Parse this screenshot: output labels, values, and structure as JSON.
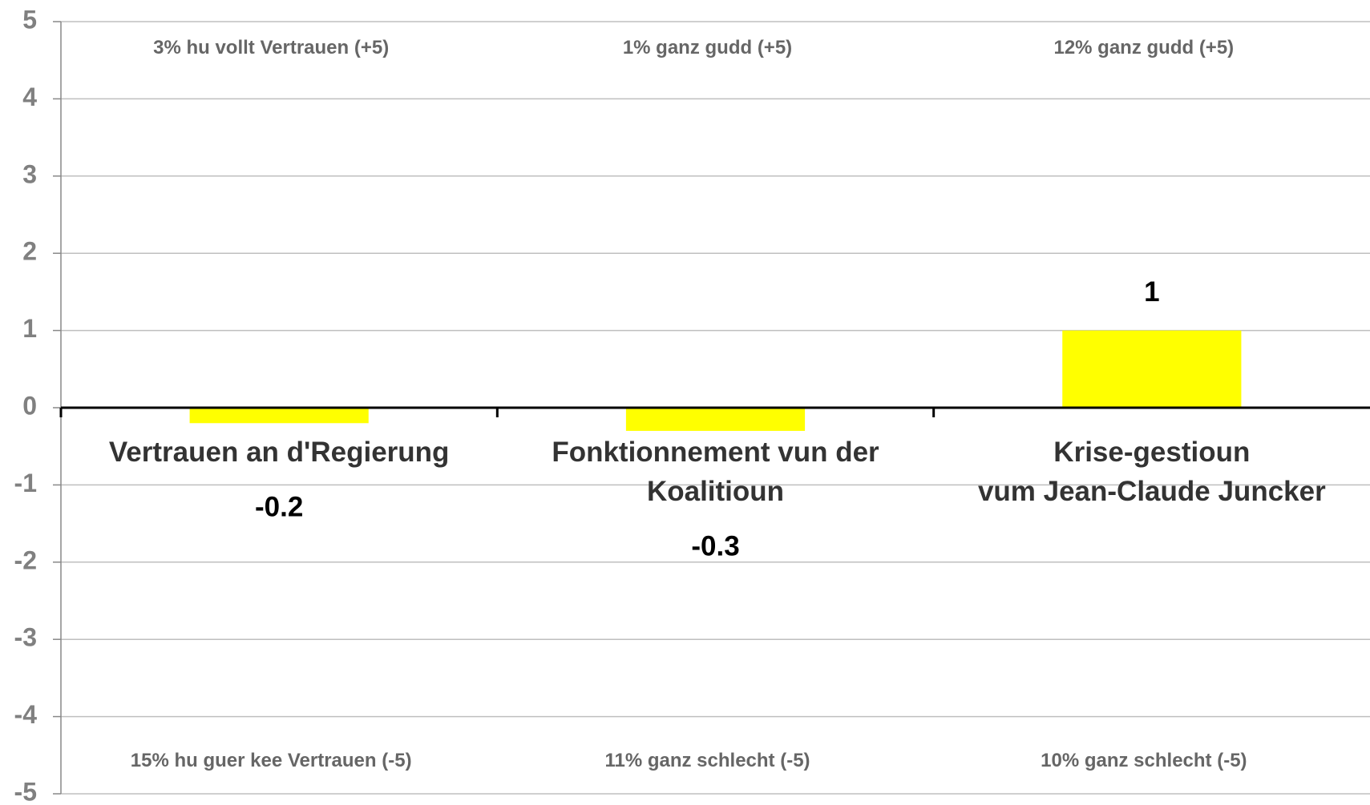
{
  "chart_data": {
    "type": "bar",
    "categories": [
      "Vertrauen an d'Regierung",
      "Fonktionnement vun der\nKoalitioun",
      "Krise-gestioun\nvum Jean-Claude Juncker"
    ],
    "values": [
      -0.2,
      -0.3,
      1
    ],
    "color": "#ffff00",
    "ylim": [
      -5,
      5
    ],
    "yticks": [
      -5,
      -4,
      -3,
      -2,
      -1,
      0,
      1,
      2,
      3,
      4,
      5
    ],
    "grid": true,
    "annotations_top": [
      "3% hu vollt Vertrauen (+5)",
      "1% ganz gudd (+5)",
      "12% ganz gudd (+5)"
    ],
    "annotations_bottom": [
      "15% hu guer kee Vertrauen (-5)",
      "11% ganz schlecht (-5)",
      "10% ganz schlecht (-5)"
    ]
  }
}
